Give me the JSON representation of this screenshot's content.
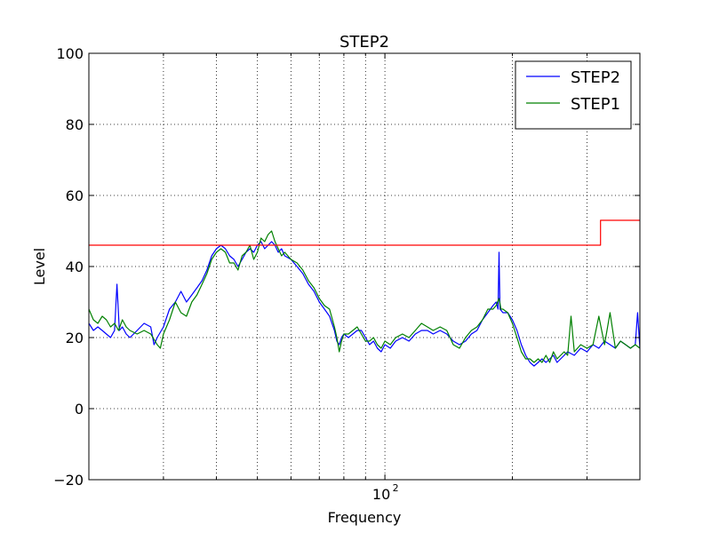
{
  "chart_data": {
    "type": "line",
    "title": "STEP2",
    "xlabel": "Frequency",
    "ylabel": "Level",
    "xscale": "log",
    "xlim": [
      20,
      400
    ],
    "ylim": [
      -20,
      100
    ],
    "yticks": [
      -20,
      0,
      20,
      40,
      60,
      80,
      100
    ],
    "xtick_major": {
      "value": 100,
      "base": "10",
      "exp": "2"
    },
    "xtick_minor": [
      30,
      40,
      50,
      60,
      70,
      80,
      90,
      200,
      300
    ],
    "grid": true,
    "legend": {
      "position": "top-right"
    },
    "series": [
      {
        "name": "STEP2",
        "color": "#0000ff",
        "points": [
          [
            20,
            24
          ],
          [
            20.5,
            22
          ],
          [
            21,
            23
          ],
          [
            21.5,
            22
          ],
          [
            22,
            21
          ],
          [
            22.5,
            20
          ],
          [
            23,
            22
          ],
          [
            23.3,
            35
          ],
          [
            23.6,
            22
          ],
          [
            24,
            23
          ],
          [
            24.5,
            21
          ],
          [
            25,
            20
          ],
          [
            26,
            22
          ],
          [
            27,
            24
          ],
          [
            28,
            23
          ],
          [
            28.5,
            18
          ],
          [
            29,
            20
          ],
          [
            30,
            23
          ],
          [
            31,
            28
          ],
          [
            32,
            30
          ],
          [
            33,
            33
          ],
          [
            34,
            30
          ],
          [
            35,
            32
          ],
          [
            36,
            34
          ],
          [
            37,
            36
          ],
          [
            38,
            39
          ],
          [
            39,
            43
          ],
          [
            40,
            45
          ],
          [
            41,
            46
          ],
          [
            42,
            45
          ],
          [
            43,
            43
          ],
          [
            44,
            42
          ],
          [
            45,
            40
          ],
          [
            46,
            42
          ],
          [
            47,
            44
          ],
          [
            48,
            45
          ],
          [
            49,
            44
          ],
          [
            50,
            46
          ],
          [
            51,
            47
          ],
          [
            52,
            45
          ],
          [
            53,
            46
          ],
          [
            54,
            47
          ],
          [
            55,
            46
          ],
          [
            56,
            44
          ],
          [
            57,
            45
          ],
          [
            58,
            43
          ],
          [
            60,
            42
          ],
          [
            62,
            40
          ],
          [
            64,
            38
          ],
          [
            66,
            35
          ],
          [
            68,
            33
          ],
          [
            70,
            30
          ],
          [
            72,
            28
          ],
          [
            74,
            26
          ],
          [
            76,
            22
          ],
          [
            77,
            19
          ],
          [
            78,
            18
          ],
          [
            79,
            20
          ],
          [
            80,
            21
          ],
          [
            82,
            20
          ],
          [
            84,
            21
          ],
          [
            86,
            22
          ],
          [
            88,
            22
          ],
          [
            90,
            20
          ],
          [
            92,
            18
          ],
          [
            94,
            19
          ],
          [
            96,
            17
          ],
          [
            98,
            16
          ],
          [
            100,
            18
          ],
          [
            103,
            17
          ],
          [
            106,
            19
          ],
          [
            110,
            20
          ],
          [
            114,
            19
          ],
          [
            118,
            21
          ],
          [
            122,
            22
          ],
          [
            126,
            22
          ],
          [
            130,
            21
          ],
          [
            135,
            22
          ],
          [
            140,
            21
          ],
          [
            145,
            19
          ],
          [
            150,
            18
          ],
          [
            155,
            19
          ],
          [
            160,
            21
          ],
          [
            165,
            22
          ],
          [
            170,
            25
          ],
          [
            175,
            27
          ],
          [
            180,
            29
          ],
          [
            183,
            30
          ],
          [
            185,
            28
          ],
          [
            186,
            44
          ],
          [
            187,
            28
          ],
          [
            190,
            27
          ],
          [
            195,
            27
          ],
          [
            200,
            25
          ],
          [
            205,
            22
          ],
          [
            210,
            18
          ],
          [
            215,
            15
          ],
          [
            220,
            13
          ],
          [
            225,
            12
          ],
          [
            230,
            13
          ],
          [
            235,
            14
          ],
          [
            240,
            13
          ],
          [
            245,
            14
          ],
          [
            250,
            15
          ],
          [
            255,
            13
          ],
          [
            260,
            14
          ],
          [
            265,
            15
          ],
          [
            270,
            16
          ],
          [
            280,
            15
          ],
          [
            290,
            17
          ],
          [
            300,
            16
          ],
          [
            310,
            18
          ],
          [
            320,
            17
          ],
          [
            330,
            19
          ],
          [
            340,
            18
          ],
          [
            350,
            17
          ],
          [
            360,
            19
          ],
          [
            370,
            18
          ],
          [
            380,
            17
          ],
          [
            390,
            18
          ],
          [
            395,
            27
          ],
          [
            400,
            17
          ]
        ]
      },
      {
        "name": "STEP1",
        "color": "#008000",
        "points": [
          [
            20,
            28
          ],
          [
            20.5,
            25
          ],
          [
            21,
            24
          ],
          [
            21.5,
            26
          ],
          [
            22,
            25
          ],
          [
            22.5,
            23
          ],
          [
            23,
            24
          ],
          [
            23.5,
            22
          ],
          [
            24,
            25
          ],
          [
            24.5,
            23
          ],
          [
            25,
            22
          ],
          [
            26,
            21
          ],
          [
            27,
            22
          ],
          [
            28,
            21
          ],
          [
            29,
            18
          ],
          [
            29.5,
            17
          ],
          [
            30,
            21
          ],
          [
            31,
            25
          ],
          [
            32,
            30
          ],
          [
            33,
            27
          ],
          [
            34,
            26
          ],
          [
            35,
            30
          ],
          [
            36,
            32
          ],
          [
            37,
            35
          ],
          [
            38,
            38
          ],
          [
            39,
            42
          ],
          [
            40,
            44
          ],
          [
            41,
            45
          ],
          [
            42,
            44
          ],
          [
            43,
            41
          ],
          [
            44,
            41
          ],
          [
            45,
            39
          ],
          [
            46,
            43
          ],
          [
            47,
            44
          ],
          [
            48,
            46
          ],
          [
            49,
            42
          ],
          [
            50,
            44
          ],
          [
            51,
            48
          ],
          [
            52,
            47
          ],
          [
            53,
            49
          ],
          [
            54,
            50
          ],
          [
            55,
            47
          ],
          [
            56,
            45
          ],
          [
            57,
            43
          ],
          [
            58,
            44
          ],
          [
            60,
            42
          ],
          [
            62,
            41
          ],
          [
            64,
            39
          ],
          [
            66,
            36
          ],
          [
            68,
            34
          ],
          [
            70,
            31
          ],
          [
            72,
            29
          ],
          [
            74,
            28
          ],
          [
            76,
            23
          ],
          [
            77,
            20
          ],
          [
            78,
            16
          ],
          [
            79,
            19
          ],
          [
            80,
            21
          ],
          [
            82,
            21
          ],
          [
            84,
            22
          ],
          [
            86,
            23
          ],
          [
            88,
            21
          ],
          [
            90,
            19
          ],
          [
            92,
            19
          ],
          [
            94,
            20
          ],
          [
            96,
            18
          ],
          [
            98,
            17
          ],
          [
            100,
            19
          ],
          [
            103,
            18
          ],
          [
            106,
            20
          ],
          [
            110,
            21
          ],
          [
            114,
            20
          ],
          [
            118,
            22
          ],
          [
            122,
            24
          ],
          [
            126,
            23
          ],
          [
            130,
            22
          ],
          [
            135,
            23
          ],
          [
            140,
            22
          ],
          [
            145,
            18
          ],
          [
            150,
            17
          ],
          [
            155,
            20
          ],
          [
            160,
            22
          ],
          [
            165,
            23
          ],
          [
            170,
            25
          ],
          [
            175,
            28
          ],
          [
            180,
            28
          ],
          [
            183,
            29
          ],
          [
            186,
            31
          ],
          [
            188,
            28
          ],
          [
            190,
            28
          ],
          [
            195,
            27
          ],
          [
            200,
            24
          ],
          [
            205,
            20
          ],
          [
            210,
            16
          ],
          [
            215,
            14
          ],
          [
            220,
            14
          ],
          [
            225,
            13
          ],
          [
            230,
            14
          ],
          [
            235,
            13
          ],
          [
            240,
            15
          ],
          [
            245,
            13
          ],
          [
            250,
            16
          ],
          [
            255,
            14
          ],
          [
            260,
            15
          ],
          [
            265,
            16
          ],
          [
            270,
            15
          ],
          [
            275,
            26
          ],
          [
            280,
            16
          ],
          [
            290,
            18
          ],
          [
            300,
            17
          ],
          [
            310,
            18
          ],
          [
            320,
            26
          ],
          [
            330,
            18
          ],
          [
            340,
            27
          ],
          [
            350,
            17
          ],
          [
            360,
            19
          ],
          [
            370,
            18
          ],
          [
            380,
            17
          ],
          [
            390,
            18
          ],
          [
            400,
            17
          ]
        ]
      },
      {
        "color": "#ff0000",
        "step": true,
        "points": [
          [
            20,
            46
          ],
          [
            323,
            46
          ],
          [
            323,
            53
          ],
          [
            400,
            53
          ]
        ]
      }
    ]
  }
}
